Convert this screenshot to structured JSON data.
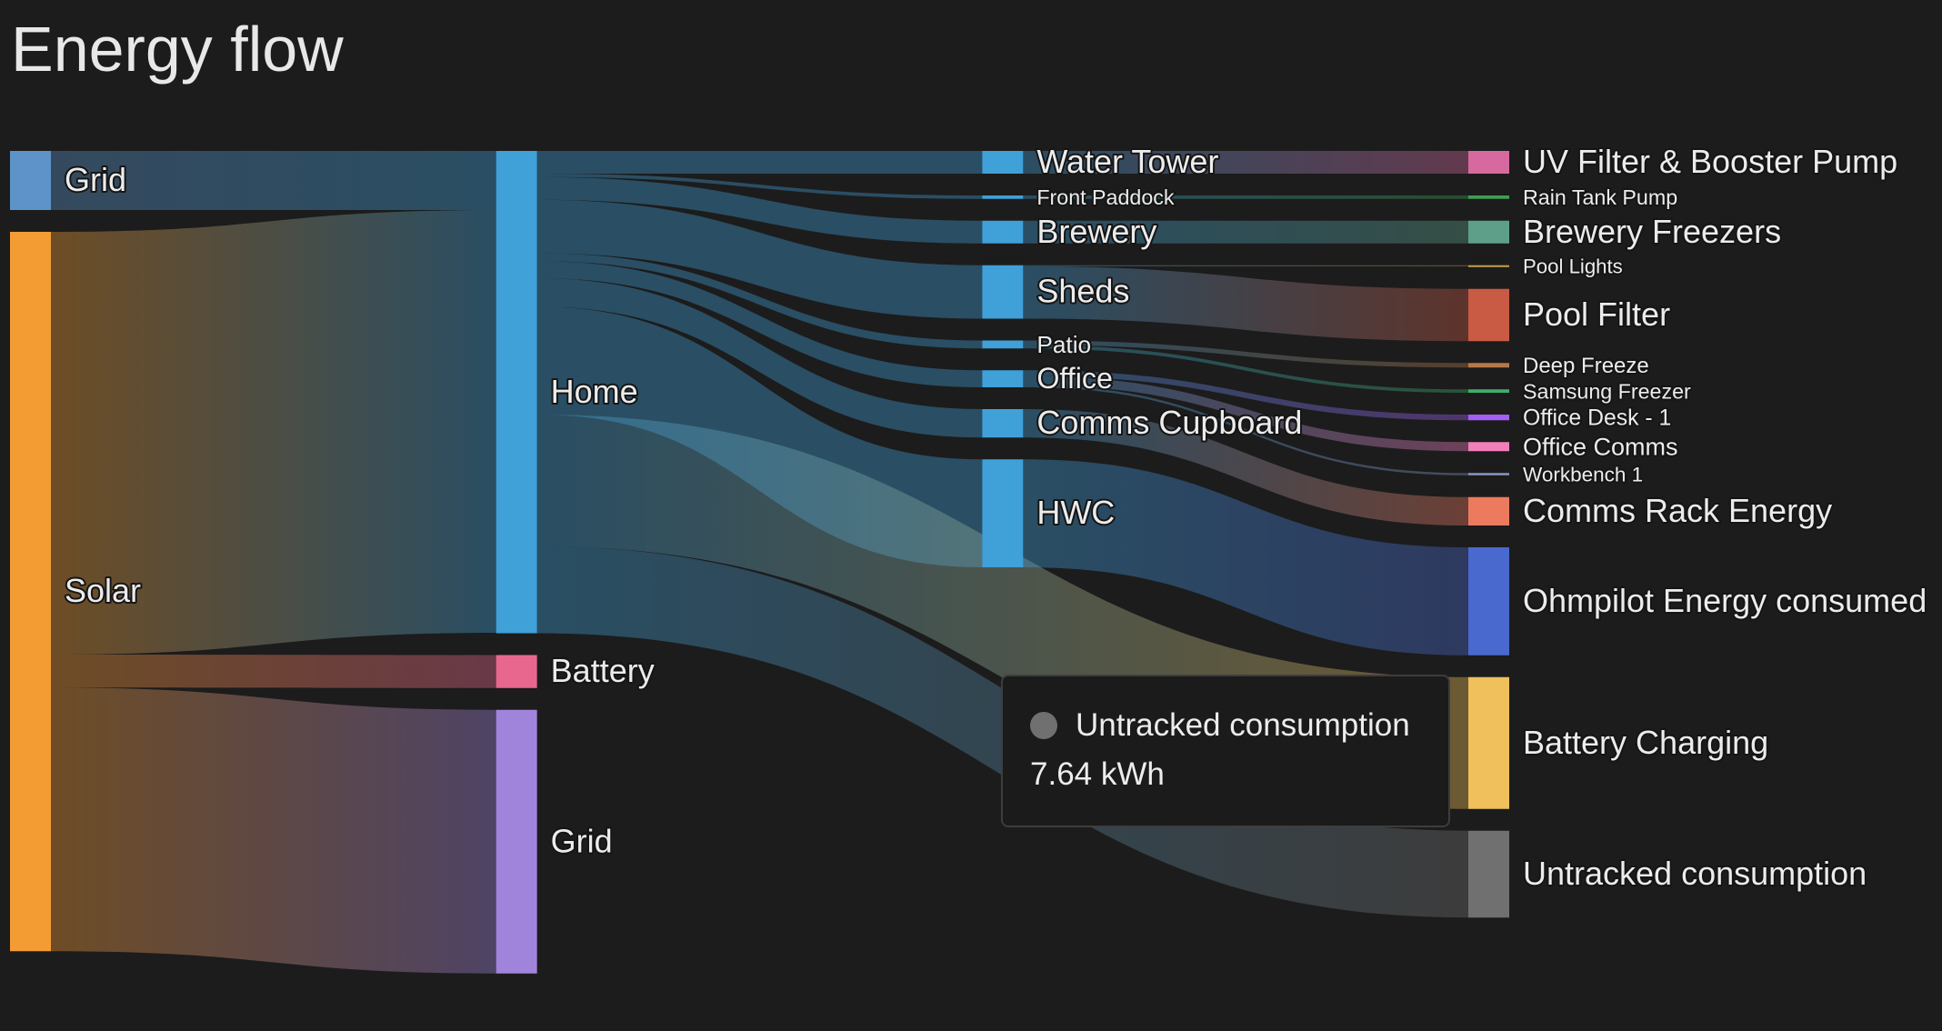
{
  "chart_data": {
    "type": "sankey",
    "title": "Energy flow",
    "nodes": [
      {
        "name": "Grid",
        "color": "#5e93c9"
      },
      {
        "name": "Solar",
        "color": "#f39c34"
      },
      {
        "name": "Home",
        "color": "#40a0d8"
      },
      {
        "name": "Battery",
        "color": "#e8678f"
      },
      {
        "name": "Grid",
        "color": "#a084dc"
      },
      {
        "name": "Water Tower",
        "color": "#40a0d8"
      },
      {
        "name": "Front Paddock",
        "color": "#40a0d8"
      },
      {
        "name": "Brewery",
        "color": "#40a0d8"
      },
      {
        "name": "Sheds",
        "color": "#40a0d8"
      },
      {
        "name": "Patio",
        "color": "#40a0d8"
      },
      {
        "name": "Office",
        "color": "#40a0d8"
      },
      {
        "name": "Comms Cupboard",
        "color": "#40a0d8"
      },
      {
        "name": "HWC",
        "color": "#40a0d8"
      },
      {
        "name": "UV Filter & Booster Pump",
        "color": "#d66a9e"
      },
      {
        "name": "Rain Tank Pump",
        "color": "#3e9e52"
      },
      {
        "name": "Brewery Freezers",
        "color": "#5e9f8a"
      },
      {
        "name": "Pool Lights",
        "color": "#c5a14a"
      },
      {
        "name": "Pool Filter",
        "color": "#c95a44"
      },
      {
        "name": "Deep Freeze",
        "color": "#b5784a"
      },
      {
        "name": "Samsung Freezer",
        "color": "#3fae6b"
      },
      {
        "name": "Office Desk - 1",
        "color": "#a25ff2"
      },
      {
        "name": "Office Comms",
        "color": "#f27fbb"
      },
      {
        "name": "Workbench 1",
        "color": "#8898c4"
      },
      {
        "name": "Comms Rack Energy",
        "color": "#ec7a5f"
      },
      {
        "name": "Ohmpilot Energy consumed",
        "color": "#4a69cf"
      },
      {
        "name": "Battery Charging",
        "color": "#efc05b"
      },
      {
        "name": "Untracked consumption",
        "color": "#707070"
      }
    ],
    "links": [
      {
        "source": 0,
        "target": 2,
        "value": 5.2
      },
      {
        "source": 1,
        "target": 2,
        "value": 37.2
      },
      {
        "source": 1,
        "target": 3,
        "value": 2.9
      },
      {
        "source": 1,
        "target": 4,
        "value": 23.2
      },
      {
        "source": 2,
        "target": 5,
        "value": 2.0
      },
      {
        "source": 2,
        "target": 6,
        "value": 0.3
      },
      {
        "source": 2,
        "target": 7,
        "value": 2.0
      },
      {
        "source": 2,
        "target": 8,
        "value": 4.7
      },
      {
        "source": 2,
        "target": 9,
        "value": 0.7
      },
      {
        "source": 2,
        "target": 10,
        "value": 1.5
      },
      {
        "source": 2,
        "target": 11,
        "value": 2.5
      },
      {
        "source": 2,
        "target": 12,
        "value": 9.5
      },
      {
        "source": 2,
        "target": 25,
        "value": 11.6
      },
      {
        "source": 2,
        "target": 26,
        "value": 7.64,
        "value_label": "7.64 kWh"
      },
      {
        "source": 5,
        "target": 13,
        "value": 2.0
      },
      {
        "source": 6,
        "target": 14,
        "value": 0.3
      },
      {
        "source": 7,
        "target": 15,
        "value": 2.0
      },
      {
        "source": 8,
        "target": 16,
        "value": 0.1
      },
      {
        "source": 8,
        "target": 17,
        "value": 4.6
      },
      {
        "source": 9,
        "target": 18,
        "value": 0.4
      },
      {
        "source": 9,
        "target": 19,
        "value": 0.3
      },
      {
        "source": 10,
        "target": 20,
        "value": 0.5
      },
      {
        "source": 10,
        "target": 21,
        "value": 0.8
      },
      {
        "source": 10,
        "target": 22,
        "value": 0.2
      },
      {
        "source": 11,
        "target": 23,
        "value": 2.5
      },
      {
        "source": 12,
        "target": 24,
        "value": 9.5
      }
    ]
  }
}
